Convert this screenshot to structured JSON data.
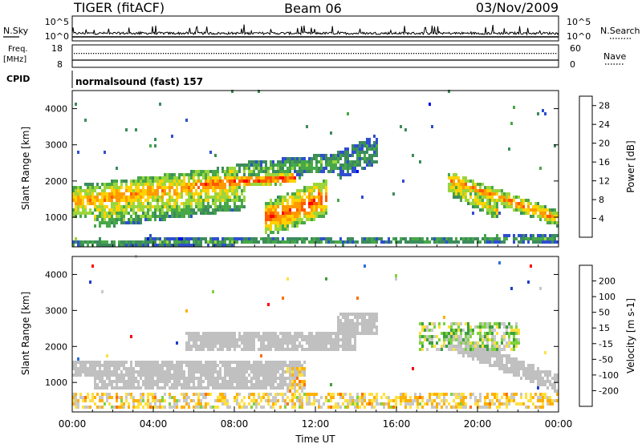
{
  "header": {
    "title": "TIGER (fitACF)",
    "beam": "Beam 06",
    "date": "03/Nov/2009"
  },
  "top_panels": {
    "nsky_label": "N.Sky",
    "nsearch_label": "N.Search",
    "log_ticks_left": [
      "10^5",
      "10^0"
    ],
    "log_ticks_right": [
      "10^5",
      "10^0"
    ],
    "freq_label": "Freq.",
    "freq_unit": "[MHz]",
    "freq_ticks": [
      "18",
      "8"
    ],
    "nave_label": "Nave",
    "nave_ticks": [
      "60",
      "0"
    ],
    "cpid_label": "CPID",
    "cpid_text": "normalsound (fast) 157"
  },
  "colors": {
    "power": [
      "#0000ff",
      "#2f4fd0",
      "#3c8c5c",
      "#47a847",
      "#9bd63c",
      "#ffd200",
      "#ff9a00",
      "#ff5a00",
      "#ff0000"
    ],
    "velocity": [
      "#1f3fc8",
      "#2f6fd8",
      "#3fa03f",
      "#7fd33f",
      "#c8c8c8",
      "#ffe040",
      "#ffb000",
      "#ff7000",
      "#ff0000"
    ],
    "ground_scatter": "#c0c0c0"
  },
  "chart_data": [
    {
      "type": "heatmap",
      "name": "power-panel",
      "xlabel": "",
      "ylabel": "Slant Range [km]",
      "x_range_hours": [
        0,
        24
      ],
      "y_range_km": [
        180,
        4500
      ],
      "yticks": [
        "1000",
        "2000",
        "3000",
        "4000"
      ],
      "colorbar": {
        "label": "Power [dB]",
        "ticks": [
          "4",
          "8",
          "12",
          "16",
          "20",
          "24",
          "28"
        ],
        "range": [
          0,
          30
        ]
      },
      "bands": [
        {
          "t0": 0.0,
          "t1": 8.0,
          "r0": 1200,
          "r1": 2100,
          "intensity": 0.75
        },
        {
          "t0": 1.0,
          "t1": 8.5,
          "r0": 900,
          "r1": 1800,
          "intensity": 0.55
        },
        {
          "t0": 6.0,
          "t1": 11.0,
          "r0": 1800,
          "r1": 2100,
          "intensity": 0.95
        },
        {
          "t0": 9.5,
          "t1": 12.5,
          "r0": 700,
          "r1": 1700,
          "intensity": 0.9
        },
        {
          "t0": 8.0,
          "t1": 13.5,
          "r0": 2100,
          "r1": 2600,
          "intensity": 0.4
        },
        {
          "t0": 13.0,
          "t1": 15.0,
          "r0": 2200,
          "r1": 3000,
          "intensity": 0.3
        },
        {
          "t0": 18.5,
          "t1": 24.0,
          "r0": 2000,
          "r1": 900,
          "intensity": 0.8
        },
        {
          "t0": 18.5,
          "t1": 21.0,
          "r0": 1800,
          "r1": 1100,
          "intensity": 0.65
        },
        {
          "t0": 0.0,
          "t1": 24.0,
          "r0": 200,
          "r1": 400,
          "intensity": 0.35
        }
      ]
    },
    {
      "type": "heatmap",
      "name": "velocity-panel",
      "xlabel": "Time UT",
      "ylabel": "Slant Range [km]",
      "x_range_hours": [
        0,
        24
      ],
      "y_range_km": [
        180,
        4500
      ],
      "yticks": [
        "1000",
        "2000",
        "3000",
        "4000"
      ],
      "xticks": [
        "00:00",
        "04:00",
        "08:00",
        "12:00",
        "16:00",
        "20:00",
        "00:00"
      ],
      "colorbar": {
        "label": "Velocity [m s-1]",
        "ticks": [
          "200",
          "100",
          "50",
          "15",
          "-15",
          "-50",
          "-100",
          "-200"
        ],
        "range": [
          -250,
          250
        ]
      },
      "ground_scatter_bands": [
        {
          "t0": 0.0,
          "t1": 11.5,
          "r0": 1100,
          "r1": 1600
        },
        {
          "t0": 1.0,
          "t1": 11.0,
          "r0": 800,
          "r1": 1300
        },
        {
          "t0": 5.5,
          "t1": 14.0,
          "r0": 1800,
          "r1": 2400
        },
        {
          "t0": 13.0,
          "t1": 15.0,
          "r0": 2300,
          "r1": 2900
        },
        {
          "t0": 18.5,
          "t1": 24.0,
          "r0": 2100,
          "r1": 900
        }
      ],
      "iono_bands": [
        {
          "t0": 0.0,
          "t1": 24.0,
          "r0": 250,
          "r1": 700,
          "v": -60
        },
        {
          "t0": 10.5,
          "t1": 11.5,
          "r0": 700,
          "r1": 1400,
          "v": -80
        },
        {
          "t0": 17.0,
          "t1": 22.0,
          "r0": 1800,
          "r1": 2600,
          "v": 40
        }
      ]
    }
  ]
}
